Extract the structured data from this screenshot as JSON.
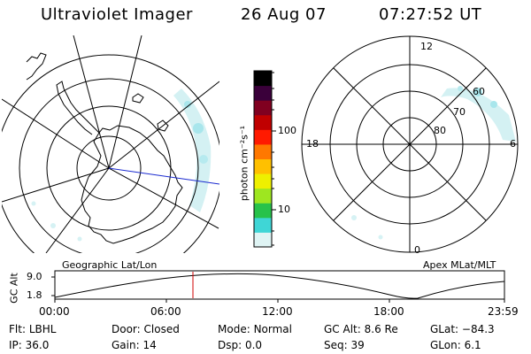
{
  "header": {
    "instrument": "Ultraviolet Imager",
    "date": "26 Aug 07",
    "time": "07:27:52 UT"
  },
  "left_map": {
    "caption": "Geographic Lat/Lon"
  },
  "right_map": {
    "caption": "Apex MLat/MLT",
    "mlt_labels": {
      "top": "12",
      "left": "18",
      "right": "6",
      "bottom": "0"
    },
    "mlat_labels": [
      "60",
      "70",
      "80"
    ]
  },
  "colorbar": {
    "unit_label": "photon cm⁻²s⁻¹",
    "ticks": [
      "100",
      "10"
    ],
    "scale": "log",
    "colors": [
      "#dff4f4",
      "#3fd6d6",
      "#27c24a",
      "#9ee620",
      "#eef000",
      "#ffc000",
      "#ff7800",
      "#ff1a00",
      "#c00000",
      "#800020",
      "#3a003a",
      "#000000"
    ]
  },
  "orbit_plot": {
    "ylabel": "GC Alt",
    "y_ticks": [
      "9.0",
      "1.8"
    ],
    "x_ticks": [
      "00:00",
      "06:00",
      "12:00",
      "18:00",
      "23:59"
    ],
    "current_time_marker": "07:27",
    "marker_color": "#d00000"
  },
  "info": {
    "row1": [
      {
        "label": "Flt:",
        "value": "LBHL"
      },
      {
        "label": "Door:",
        "value": "Closed"
      },
      {
        "label": "Mode:",
        "value": "Normal"
      },
      {
        "label": "GC Alt:",
        "value": "8.6 Re"
      },
      {
        "label": "GLat:",
        "value": "−84.3"
      }
    ],
    "row2": [
      {
        "label": "IP:",
        "value": "36.0"
      },
      {
        "label": "Gain:",
        "value": "14"
      },
      {
        "label": "Dsp:",
        "value": "0.0"
      },
      {
        "label": "Seq:",
        "value": "39"
      },
      {
        "label": "GLon:",
        "value": "6.1"
      }
    ]
  }
}
